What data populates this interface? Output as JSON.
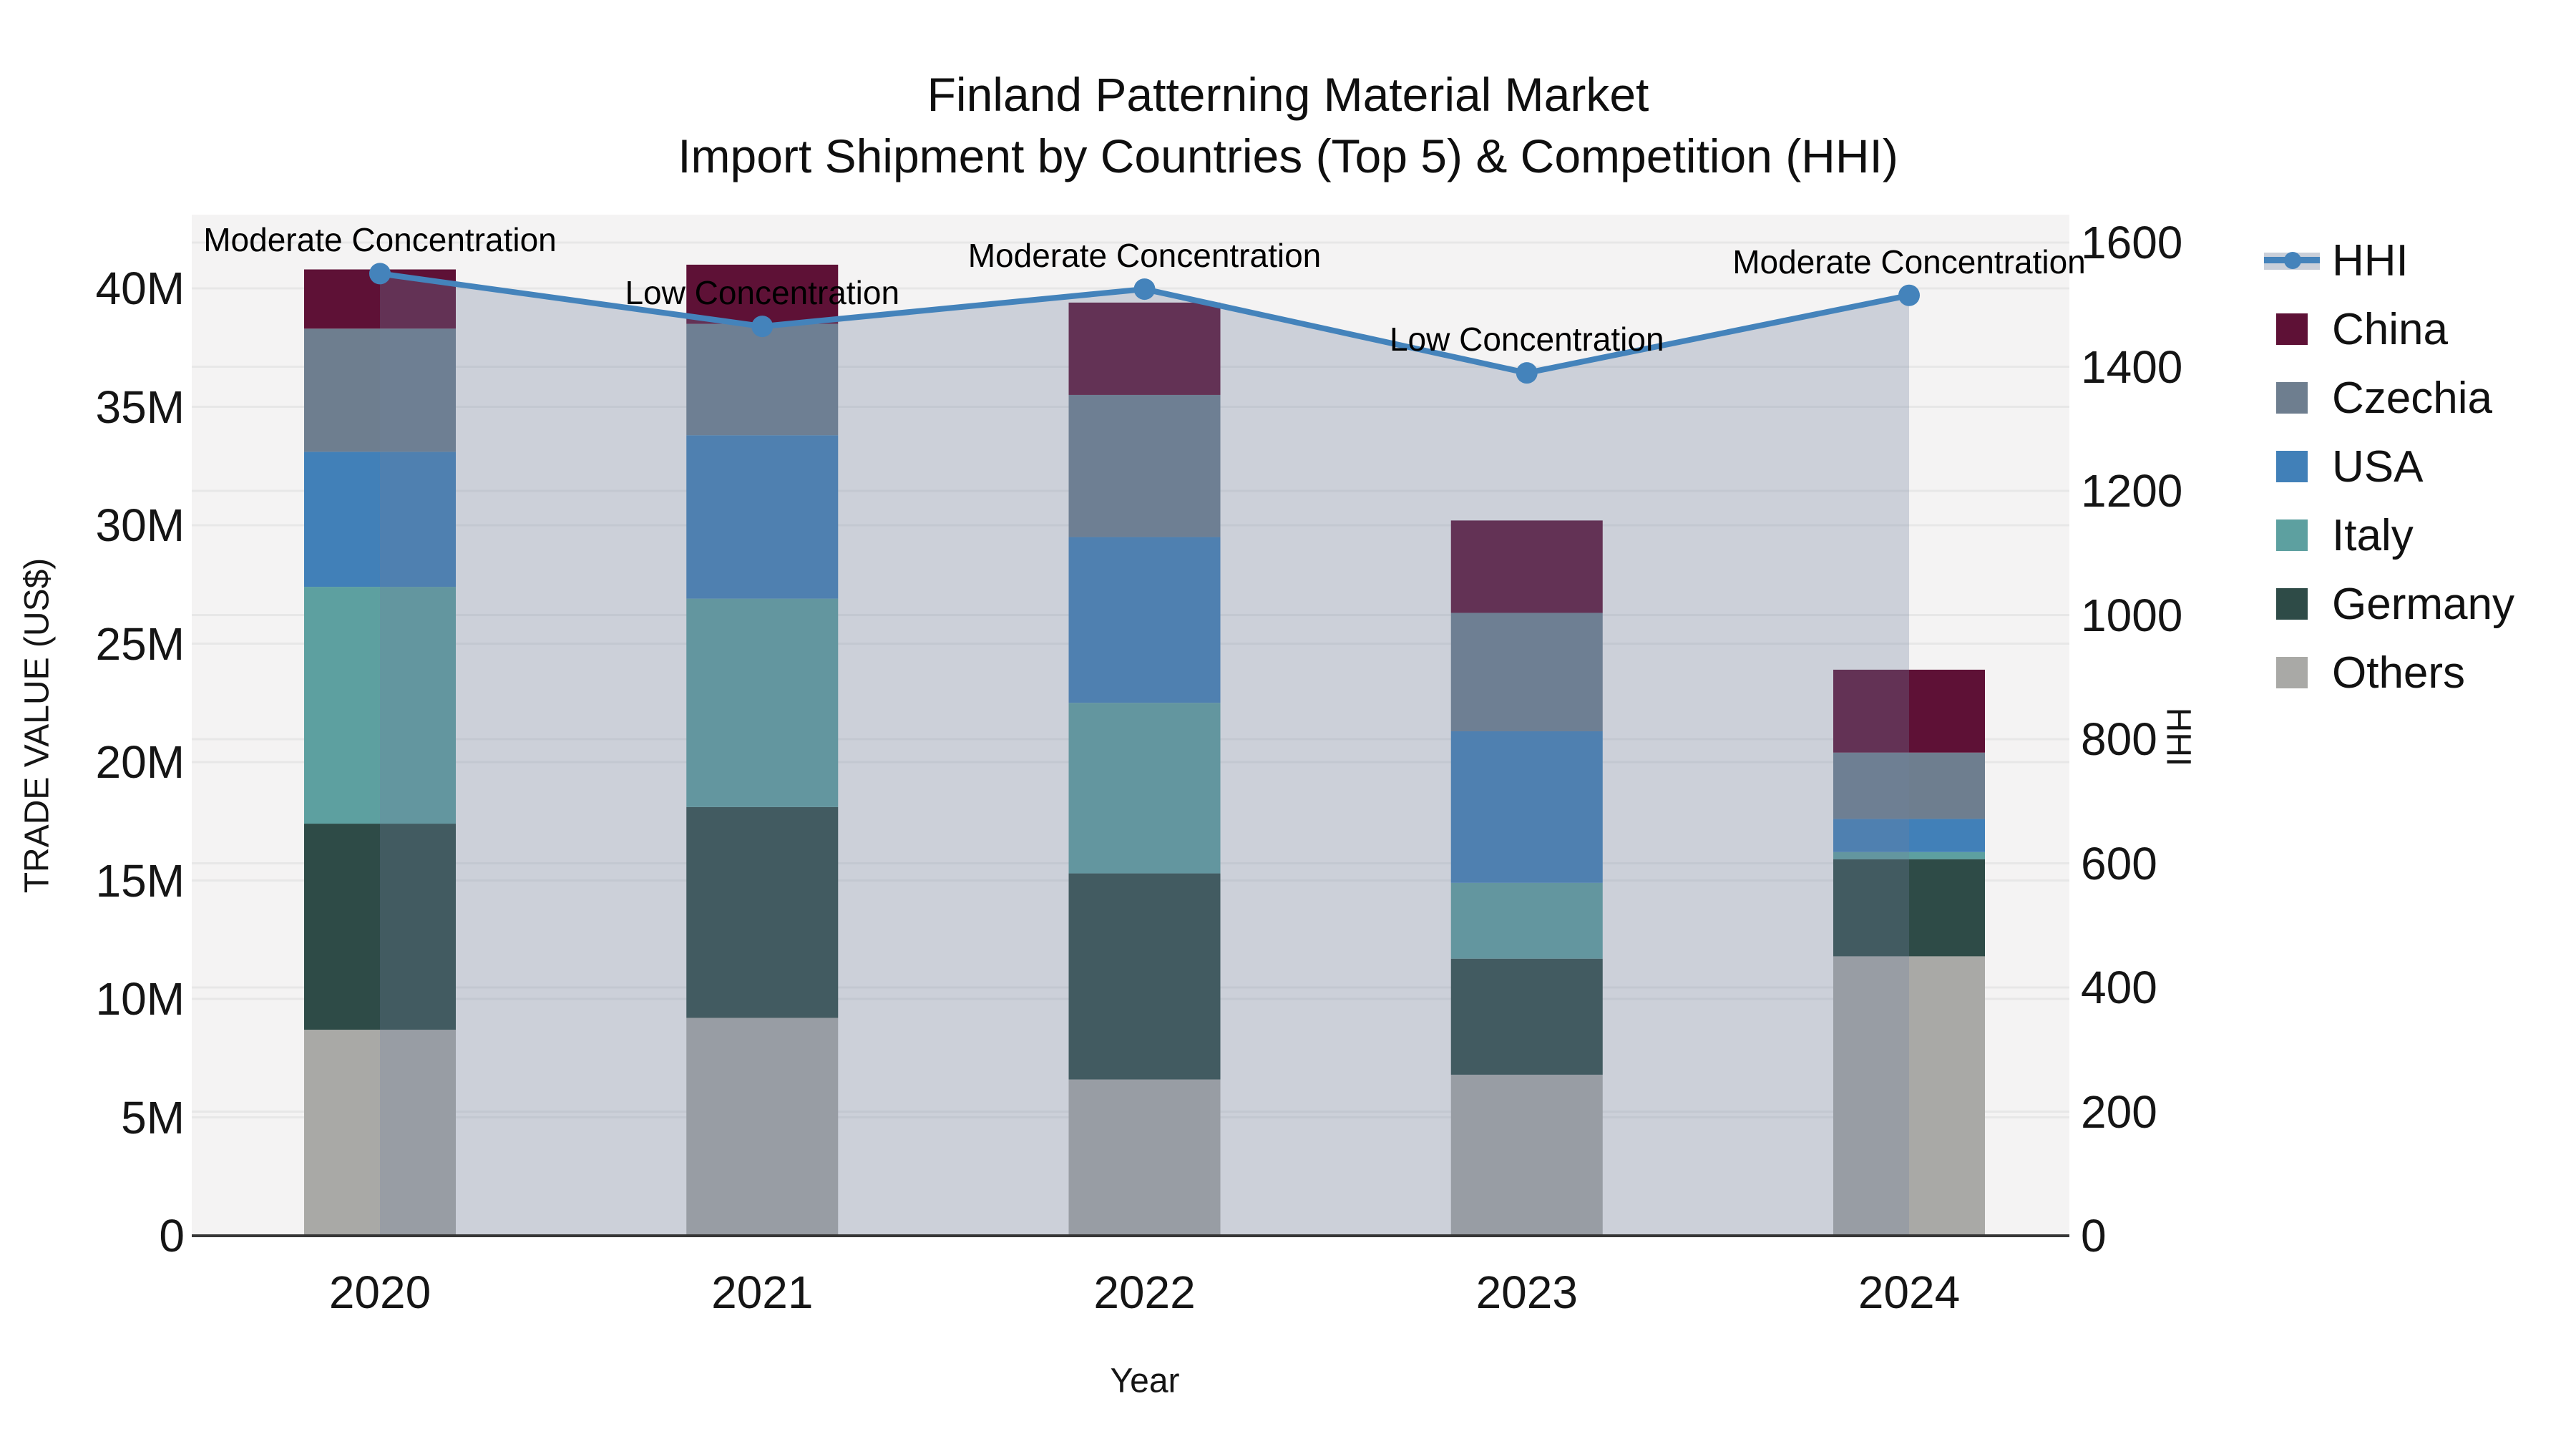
{
  "title": {
    "line1": "Finland Patterning Material Market",
    "line2": "Import Shipment by Countries (Top 5) & Competition (HHI)"
  },
  "axes": {
    "x_title": "Year",
    "y_left_title": "TRADE VALUE (US$)",
    "y_right_title": "HHI",
    "y_left_ticks": [
      {
        "label": "0",
        "value": 0
      },
      {
        "label": "5M",
        "value": 5
      },
      {
        "label": "10M",
        "value": 10
      },
      {
        "label": "15M",
        "value": 15
      },
      {
        "label": "20M",
        "value": 20
      },
      {
        "label": "25M",
        "value": 25
      },
      {
        "label": "30M",
        "value": 30
      },
      {
        "label": "35M",
        "value": 35
      },
      {
        "label": "40M",
        "value": 40
      }
    ],
    "y_right_ticks": [
      {
        "label": "0",
        "value": 0
      },
      {
        "label": "200",
        "value": 200
      },
      {
        "label": "400",
        "value": 400
      },
      {
        "label": "600",
        "value": 600
      },
      {
        "label": "800",
        "value": 800
      },
      {
        "label": "1000",
        "value": 1000
      },
      {
        "label": "1200",
        "value": 1200
      },
      {
        "label": "1400",
        "value": 1400
      },
      {
        "label": "1600",
        "value": 1600
      }
    ]
  },
  "legend": {
    "items": [
      {
        "label": "HHI",
        "swatch": "line"
      },
      {
        "label": "China",
        "swatch": "square"
      },
      {
        "label": "Czechia",
        "swatch": "square"
      },
      {
        "label": "USA",
        "swatch": "square"
      },
      {
        "label": "Italy",
        "swatch": "square"
      },
      {
        "label": "Germany",
        "swatch": "square"
      },
      {
        "label": "Others",
        "swatch": "square"
      }
    ]
  },
  "colors": {
    "plot_bg": "#f4f3f3",
    "grid": "#e7e7e7",
    "axis_line": "#363636",
    "hhi_line": "#4483bb",
    "hhi_area_fill": "rgba(113,130,160,0.30)",
    "hhi_legend_band": "#c9cfd9",
    "china": "#5e1136",
    "czechia": "#6e7e8f",
    "usa": "#4180b8",
    "italy": "#5da0a0",
    "germany": "#2e4b47",
    "others": "#a9a9a6"
  },
  "chart_data": {
    "type": "bar",
    "subtype": "stacked-bar-with-line",
    "title": "Finland Patterning Material Market — Import Shipment by Countries (Top 5) & Competition (HHI)",
    "xlabel": "Year",
    "ylabel_left": "TRADE VALUE (US$)",
    "ylabel_right": "HHI",
    "ylim_left_millions": [
      0,
      43.1
    ],
    "ylim_right": [
      0,
      1645
    ],
    "grid": true,
    "legend_position": "right",
    "categories": [
      "2020",
      "2021",
      "2022",
      "2023",
      "2024"
    ],
    "bar_value_unit": "million US$",
    "series": [
      {
        "name": "Others",
        "color_key": "others",
        "values": [
          8.7,
          9.2,
          6.6,
          6.8,
          11.8
        ]
      },
      {
        "name": "Germany",
        "color_key": "germany",
        "values": [
          8.7,
          8.9,
          8.7,
          4.9,
          4.1
        ]
      },
      {
        "name": "Italy",
        "color_key": "italy",
        "values": [
          10.0,
          8.8,
          7.2,
          3.2,
          0.3
        ]
      },
      {
        "name": "USA",
        "color_key": "usa",
        "values": [
          5.7,
          6.9,
          7.0,
          6.4,
          1.4
        ]
      },
      {
        "name": "Czechia",
        "color_key": "czechia",
        "values": [
          5.2,
          4.7,
          6.0,
          5.0,
          2.8
        ]
      },
      {
        "name": "China",
        "color_key": "china",
        "values": [
          2.5,
          2.5,
          3.9,
          3.9,
          3.5
        ]
      }
    ],
    "stack_totals_millions": [
      40.8,
      41.0,
      39.4,
      30.2,
      23.9
    ],
    "line_series": {
      "name": "HHI",
      "color_key": "hhi_line",
      "area_fill": true,
      "values": [
        1550,
        1465,
        1525,
        1390,
        1515
      ]
    },
    "annotations": [
      {
        "category": "2020",
        "text": "Moderate Concentration"
      },
      {
        "category": "2021",
        "text": "Low Concentration"
      },
      {
        "category": "2022",
        "text": "Moderate Concentration"
      },
      {
        "category": "2023",
        "text": "Low Concentration"
      },
      {
        "category": "2024",
        "text": "Moderate Concentration"
      }
    ]
  }
}
